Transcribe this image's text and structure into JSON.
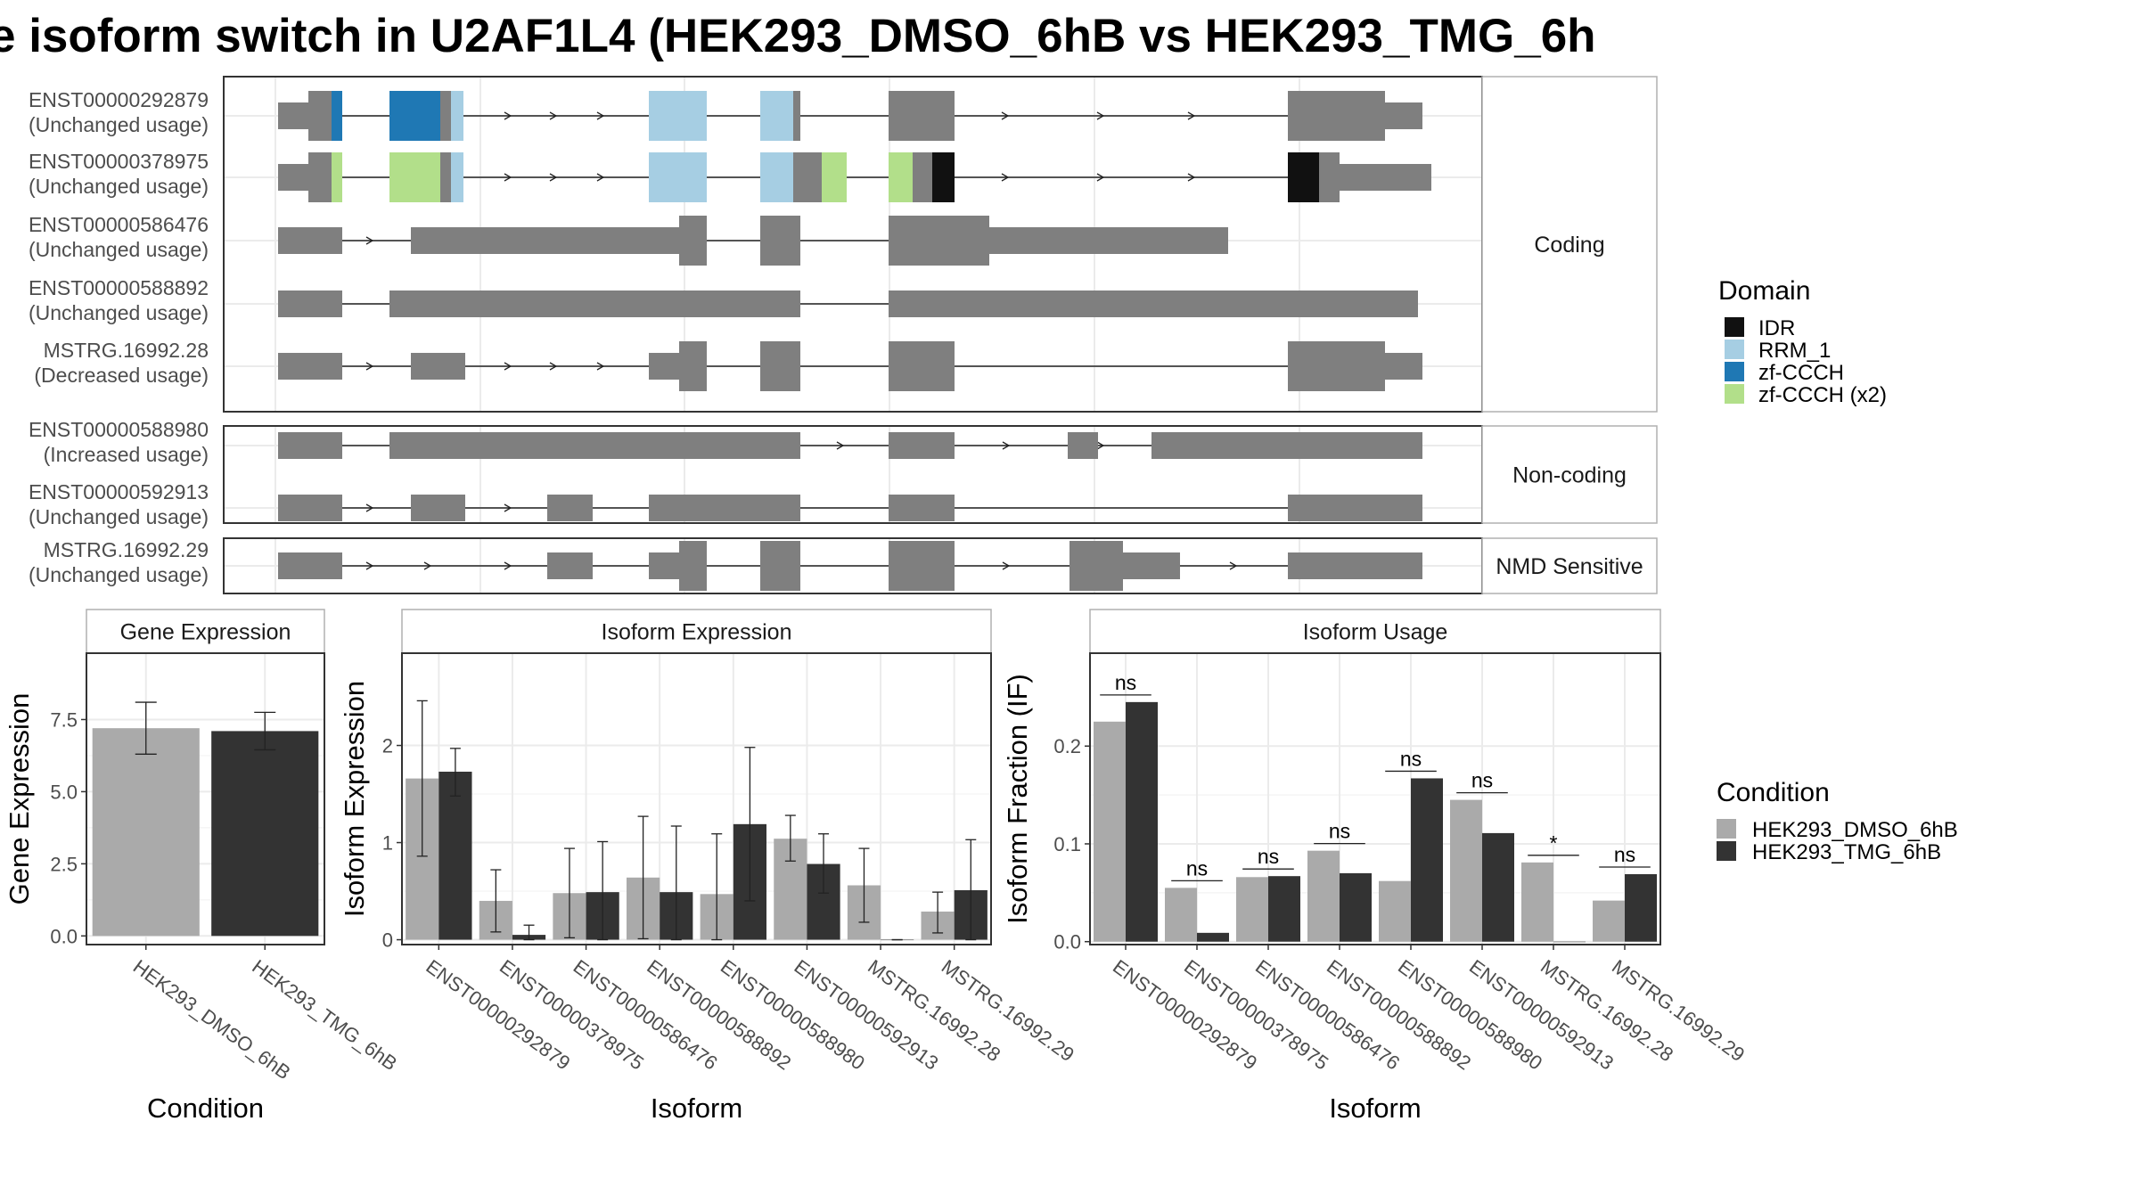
{
  "title": "e isoform switch in U2AF1L4 (HEK293_DMSO_6hB vs HEK293_TMG_6h",
  "chart_data": [
    {
      "type": "gene-structure",
      "transcripts": [
        {
          "id": "ENST00000292879",
          "usage": "(Unchanged usage)",
          "group": "Coding"
        },
        {
          "id": "ENST00000378975",
          "usage": "(Unchanged usage)",
          "group": "Coding"
        },
        {
          "id": "ENST00000586476",
          "usage": "(Unchanged usage)",
          "group": "Coding"
        },
        {
          "id": "ENST00000588892",
          "usage": "(Unchanged usage)",
          "group": "Coding"
        },
        {
          "id": "MSTRG.16992.28",
          "usage": "(Decreased usage)",
          "group": "Coding"
        },
        {
          "id": "ENST00000588980",
          "usage": "(Increased usage)",
          "group": "Non-coding"
        },
        {
          "id": "ENST00000592913",
          "usage": "(Unchanged usage)",
          "group": "Non-coding"
        },
        {
          "id": "MSTRG.16992.29",
          "usage": "(Unchanged usage)",
          "group": "NMD Sensitive"
        }
      ],
      "groups": [
        "Coding",
        "Non-coding",
        "NMD Sensitive"
      ],
      "legend_title": "Domain",
      "domains": [
        {
          "name": "IDR",
          "color": "#111111"
        },
        {
          "name": "RRM_1",
          "color": "#a6cee3"
        },
        {
          "name": "zf-CCCH",
          "color": "#1f78b4"
        },
        {
          "name": "zf-CCCH (x2)",
          "color": "#b2df8a"
        }
      ]
    },
    {
      "type": "bar",
      "title": "Gene Expression",
      "xlabel": "Condition",
      "ylabel": "Gene Expression",
      "categories": [
        "HEK293_DMSO_6hB",
        "HEK293_TMG_6hB"
      ],
      "values": [
        7.2,
        7.1
      ],
      "errors": [
        [
          6.3,
          8.1
        ],
        [
          6.45,
          7.75
        ]
      ],
      "yticks": [
        "0.0",
        "2.5",
        "5.0",
        "7.5"
      ],
      "ylim": [
        -0.3,
        9.8
      ]
    },
    {
      "type": "bar",
      "title": "Isoform Expression",
      "xlabel": "Isoform",
      "ylabel": "Isoform Expression",
      "categories": [
        "ENST00000292879",
        "ENST00000378975",
        "ENST00000586476",
        "ENST00000588892",
        "ENST00000588980",
        "ENST00000592913",
        "MSTRG.16992.28",
        "MSTRG.16992.29"
      ],
      "series": [
        {
          "name": "HEK293_DMSO_6hB",
          "values": [
            1.66,
            0.4,
            0.48,
            0.64,
            0.47,
            1.04,
            0.56,
            0.29
          ],
          "errors": [
            [
              0.86,
              2.46
            ],
            [
              0.08,
              0.72
            ],
            [
              0.02,
              0.94
            ],
            [
              0.01,
              1.27
            ],
            [
              0.0,
              1.09
            ],
            [
              0.81,
              1.28
            ],
            [
              0.18,
              0.94
            ],
            [
              0.07,
              0.49
            ]
          ]
        },
        {
          "name": "HEK293_TMG_6hB",
          "values": [
            1.73,
            0.05,
            0.49,
            0.49,
            1.19,
            0.78,
            0.0,
            0.51
          ],
          "errors": [
            [
              1.48,
              1.97
            ],
            [
              0.0,
              0.15
            ],
            [
              0.0,
              1.01
            ],
            [
              0.0,
              1.17
            ],
            [
              0.4,
              1.98
            ],
            [
              0.48,
              1.09
            ],
            [
              0.0,
              0.0
            ],
            [
              0.0,
              1.03
            ]
          ]
        }
      ],
      "yticks": [
        "0",
        "1",
        "2"
      ],
      "ylim": [
        -0.05,
        2.95
      ]
    },
    {
      "type": "bar",
      "title": "Isoform Usage",
      "xlabel": "Isoform",
      "ylabel": "Isoform Fraction (IF)",
      "categories": [
        "ENST00000292879",
        "ENST00000378975",
        "ENST00000586476",
        "ENST00000588892",
        "ENST00000588980",
        "ENST00000592913",
        "MSTRG.16992.28",
        "MSTRG.16992.29"
      ],
      "series": [
        {
          "name": "HEK293_DMSO_6hB",
          "values": [
            0.225,
            0.055,
            0.066,
            0.093,
            0.062,
            0.145,
            0.081,
            0.042
          ]
        },
        {
          "name": "HEK293_TMG_6hB",
          "values": [
            0.245,
            0.009,
            0.067,
            0.07,
            0.167,
            0.111,
            0.0,
            0.069
          ]
        }
      ],
      "significance": [
        "ns",
        "ns",
        "ns",
        "ns",
        "ns",
        "ns",
        "*",
        "ns"
      ],
      "yticks": [
        "0.0",
        "0.1",
        "0.2"
      ],
      "ylim": [
        -0.003,
        0.295
      ]
    }
  ],
  "condition_legend": {
    "title": "Condition",
    "items": [
      {
        "name": "HEK293_DMSO_6hB",
        "color": "#aaaaaa"
      },
      {
        "name": "HEK293_TMG_6hB",
        "color": "#333333"
      }
    ]
  }
}
